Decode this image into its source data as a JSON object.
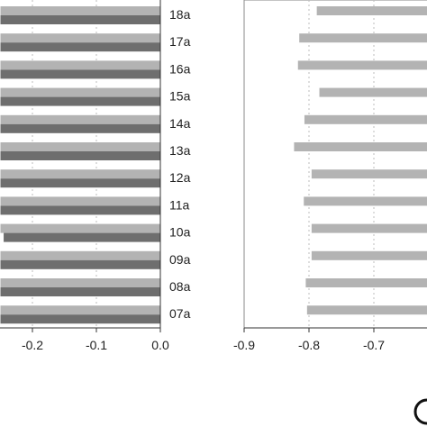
{
  "chart_data": [
    {
      "type": "bar",
      "orientation": "horizontal",
      "categories": [
        "18a",
        "17a",
        "16a",
        "15a",
        "14a",
        "13a",
        "12a",
        "11a",
        "10a",
        "09a",
        "08a",
        "07a"
      ],
      "series": [
        {
          "values": [
            -0.25,
            -0.25,
            -0.25,
            -0.25,
            -0.25,
            -0.25,
            -0.25,
            -0.25,
            -0.25,
            -0.25,
            -0.25,
            -0.25
          ],
          "color": "#b3b3b3"
        },
        {
          "values": [
            -0.25,
            -0.25,
            -0.25,
            -0.25,
            -0.25,
            -0.25,
            -0.25,
            -0.25,
            -0.245,
            -0.25,
            -0.25,
            -0.25
          ],
          "color": "#6e6e6e"
        }
      ],
      "xticks": [
        "-0.2",
        "-0.1",
        "0.0"
      ],
      "xlim": [
        -0.25,
        0.0
      ],
      "grid": true
    },
    {
      "type": "bar",
      "orientation": "horizontal",
      "categories": [
        "18a",
        "17a",
        "16a",
        "15a",
        "14a",
        "13a",
        "12a",
        "11a",
        "10a",
        "09a",
        "08a",
        "07a"
      ],
      "series": [
        {
          "values": [
            -0.788,
            -0.815,
            -0.817,
            -0.784,
            -0.807,
            -0.823,
            -0.796,
            -0.808,
            -0.796,
            -0.796,
            -0.805,
            -0.803
          ],
          "color": "#b3b3b3"
        }
      ],
      "xticks": [
        "-0.9",
        "-0.8",
        "-0.7"
      ],
      "xlim": [
        -0.9,
        -0.61
      ],
      "grid": true
    }
  ]
}
